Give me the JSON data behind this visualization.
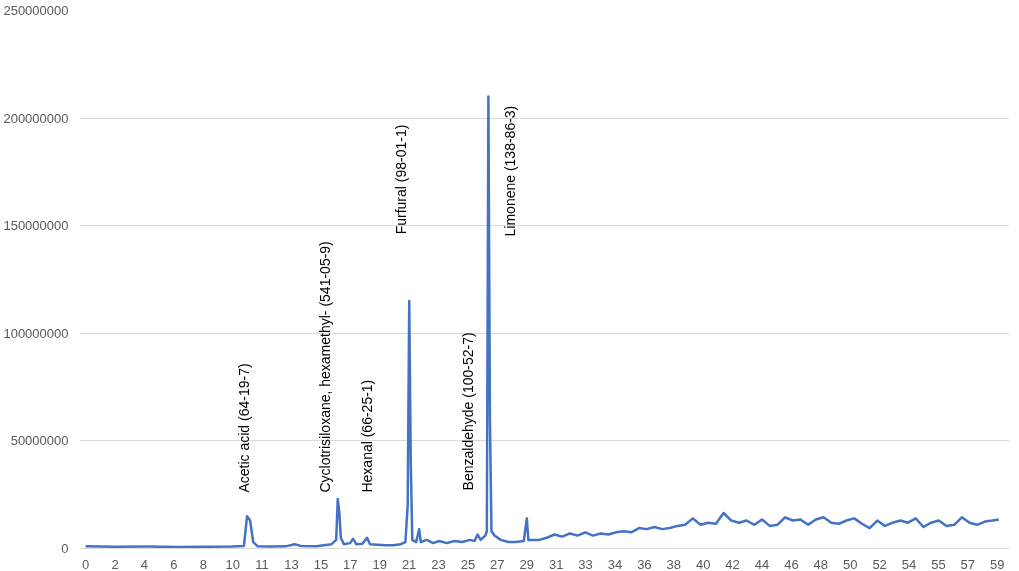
{
  "chart_data": {
    "type": "line",
    "xlim": [
      -0.4,
      60.1
    ],
    "ylim": [
      0,
      250000000
    ],
    "yticks": [
      0,
      50000000,
      100000000,
      150000000,
      200000000,
      250000000
    ],
    "xticks": [
      {
        "value": 0,
        "label": "0"
      },
      {
        "value": 1.913,
        "label": "2"
      },
      {
        "value": 3.826,
        "label": "4"
      },
      {
        "value": 5.739,
        "label": "6"
      },
      {
        "value": 7.652,
        "label": "8"
      },
      {
        "value": 9.565,
        "label": "10"
      },
      {
        "value": 11.478,
        "label": "11"
      },
      {
        "value": 13.391,
        "label": "13"
      },
      {
        "value": 15.304,
        "label": "15"
      },
      {
        "value": 17.217,
        "label": "17"
      },
      {
        "value": 19.13,
        "label": "19"
      },
      {
        "value": 21.043,
        "label": "21"
      },
      {
        "value": 22.956,
        "label": "23"
      },
      {
        "value": 24.869,
        "label": "25"
      },
      {
        "value": 26.782,
        "label": "27"
      },
      {
        "value": 28.695,
        "label": "29"
      },
      {
        "value": 30.608,
        "label": "31"
      },
      {
        "value": 32.521,
        "label": "33"
      },
      {
        "value": 34.434,
        "label": "34"
      },
      {
        "value": 36.347,
        "label": "36"
      },
      {
        "value": 38.26,
        "label": "38"
      },
      {
        "value": 40.173,
        "label": "40"
      },
      {
        "value": 42.086,
        "label": "42"
      },
      {
        "value": 43.999,
        "label": "44"
      },
      {
        "value": 45.912,
        "label": "46"
      },
      {
        "value": 47.825,
        "label": "48"
      },
      {
        "value": 49.738,
        "label": "50"
      },
      {
        "value": 51.651,
        "label": "52"
      },
      {
        "value": 53.564,
        "label": "54"
      },
      {
        "value": 55.477,
        "label": "55"
      },
      {
        "value": 57.39,
        "label": "57"
      },
      {
        "value": 59.303,
        "label": "59"
      }
    ],
    "grid": "y",
    "marker": "none",
    "line_style": "solid",
    "series": [
      {
        "color": "#4472c4",
        "x": [
          0,
          2,
          4,
          6,
          8,
          9.5,
          10.3,
          10.5,
          10.7,
          10.9,
          11.2,
          12,
          13,
          13.6,
          14,
          15,
          16,
          16.3,
          16.4,
          16.5,
          16.6,
          16.8,
          17.2,
          17.4,
          17.6,
          18,
          18.3,
          18.5,
          19.5,
          20,
          20.5,
          20.8,
          20.95,
          21.05,
          21.15,
          21.25,
          21.5,
          21.7,
          21.8,
          22.2,
          22.6,
          23,
          23.5,
          24,
          24.5,
          25,
          25.3,
          25.5,
          25.7,
          26,
          26.1,
          26.2,
          26.3,
          26.4,
          26.6,
          27,
          27.5,
          28,
          28.5,
          28.7,
          28.8,
          29.5,
          30,
          30.5,
          31,
          31.5,
          32,
          32.5,
          33,
          33.5,
          34,
          34.5,
          35,
          35.5,
          36,
          36.5,
          37,
          37.5,
          38,
          38.5,
          39,
          39.5,
          40,
          40.5,
          41,
          41.5,
          42,
          42.5,
          43,
          43.5,
          44,
          44.5,
          45,
          45.5,
          46,
          46.5,
          47,
          47.5,
          48,
          48.5,
          49,
          49.5,
          50,
          50.5,
          51,
          51.5,
          52,
          52.5,
          53,
          53.5,
          54,
          54.5,
          55,
          55.5,
          56,
          56.5,
          57,
          57.5,
          58,
          58.5,
          59,
          59.4
        ],
        "values": [
          1000000,
          800000,
          900000,
          700000,
          800000,
          900000,
          1200000,
          15000000,
          13000000,
          3000000,
          1000000,
          900000,
          1000000,
          2000000,
          1200000,
          1000000,
          2000000,
          4000000,
          23000000,
          17000000,
          5000000,
          2000000,
          2500000,
          4500000,
          2000000,
          2200000,
          5000000,
          2000000,
          1500000,
          1500000,
          2000000,
          3000000,
          20000000,
          115000000,
          40000000,
          4000000,
          3000000,
          9000000,
          3000000,
          4000000,
          2500000,
          3500000,
          2500000,
          3500000,
          3000000,
          4000000,
          3500000,
          6500000,
          4000000,
          6000000,
          8000000,
          210000000,
          60000000,
          8000000,
          6000000,
          4000000,
          3000000,
          3000000,
          3500000,
          14000000,
          4000000,
          4000000,
          5000000,
          6500000,
          5500000,
          7000000,
          6000000,
          7500000,
          6000000,
          7000000,
          6500000,
          7500000,
          8000000,
          7500000,
          9500000,
          9000000,
          10000000,
          9000000,
          9500000,
          10500000,
          11000000,
          14000000,
          11000000,
          12000000,
          11500000,
          16500000,
          13000000,
          12000000,
          13000000,
          11000000,
          13500000,
          10500000,
          11000000,
          14500000,
          13000000,
          13500000,
          11000000,
          13500000,
          14500000,
          12000000,
          11500000,
          13000000,
          14000000,
          11500000,
          9500000,
          13000000,
          10500000,
          12000000,
          13000000,
          12000000,
          14000000,
          10000000,
          12000000,
          13000000,
          10500000,
          11000000,
          14500000,
          12000000,
          11000000,
          12500000,
          13000000,
          13500000
        ]
      }
    ],
    "annotations": [
      "Acetic acid (64-19-7)",
      "Cyclotrisiloxane, hexamethyl- (541-05-9)",
      "Hexanal (66-25-1)",
      "Furfural (98-01-1)",
      "Benzaldehyde (100-52-7)",
      "Limonene (138-86-3)"
    ]
  }
}
